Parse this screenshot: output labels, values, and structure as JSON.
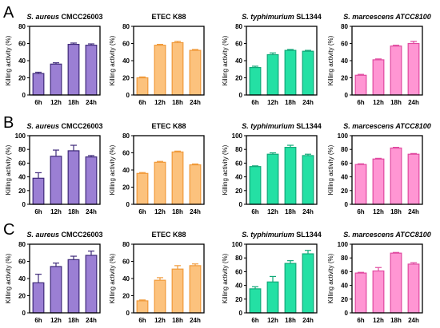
{
  "rows": [
    {
      "label": "A"
    },
    {
      "label": "B"
    },
    {
      "label": "C"
    }
  ],
  "chart_data": [
    {
      "type": "bar",
      "row": 0,
      "title_italic": "S. aureus",
      "title_rest": " CMCC26003",
      "ylabel": "Killing activity (%)",
      "categories": [
        "6h",
        "12h",
        "18h",
        "24h"
      ],
      "values": [
        25,
        36,
        59,
        58
      ],
      "errors": [
        1.5,
        1.5,
        1.5,
        1.5
      ],
      "ylim": [
        0,
        80
      ],
      "yticks": [
        0,
        20,
        40,
        60,
        80
      ],
      "color": "#9b7fd4",
      "edge": "#3f2a7a"
    },
    {
      "type": "bar",
      "row": 0,
      "title_italic": "",
      "title_rest": "ETEC K88",
      "ylabel": "Killing activity (%)",
      "categories": [
        "6h",
        "12h",
        "18h",
        "24h"
      ],
      "values": [
        20,
        58,
        61,
        52
      ],
      "errors": [
        1,
        1,
        1.5,
        1
      ],
      "ylim": [
        0,
        80
      ],
      "yticks": [
        0,
        20,
        40,
        60,
        80
      ],
      "color": "#fcc27d",
      "edge": "#f09a3a"
    },
    {
      "type": "bar",
      "row": 0,
      "title_italic": "S. typhimurium",
      "title_rest": " SL1344",
      "ylabel": "Killing activity (%)",
      "categories": [
        "6h",
        "12h",
        "18h",
        "24h"
      ],
      "values": [
        32,
        47,
        52,
        51
      ],
      "errors": [
        1.5,
        2,
        1,
        1
      ],
      "ylim": [
        0,
        80
      ],
      "yticks": [
        0,
        20,
        40,
        60,
        80
      ],
      "color": "#24e0a4",
      "edge": "#12a878"
    },
    {
      "type": "bar",
      "row": 0,
      "title_italic": "S. marcescens ATCC8100",
      "title_rest": "",
      "ylabel": "Killing activity (%)",
      "categories": [
        "6h",
        "12h",
        "18h",
        "24h"
      ],
      "values": [
        23,
        41,
        57,
        60
      ],
      "errors": [
        1,
        1,
        1,
        2.5
      ],
      "ylim": [
        0,
        80
      ],
      "yticks": [
        0,
        20,
        40,
        60,
        80
      ],
      "color": "#ff96d3",
      "edge": "#e04aa0"
    },
    {
      "type": "bar",
      "row": 1,
      "title_italic": "S. aureus",
      "title_rest": " CMCC26003",
      "ylabel": "Killing activity (%)",
      "categories": [
        "6h",
        "12h",
        "18h",
        "24h"
      ],
      "values": [
        38,
        70,
        78,
        69
      ],
      "errors": [
        8,
        9,
        8,
        2
      ],
      "ylim": [
        0,
        100
      ],
      "yticks": [
        0,
        20,
        40,
        60,
        80,
        100
      ],
      "color": "#9b7fd4",
      "edge": "#3f2a7a"
    },
    {
      "type": "bar",
      "row": 1,
      "title_italic": "",
      "title_rest": "ETEC K88",
      "ylabel": "Killing activity (%)",
      "categories": [
        "6h",
        "12h",
        "18h",
        "24h"
      ],
      "values": [
        36,
        49,
        61,
        46
      ],
      "errors": [
        1,
        1,
        1,
        1
      ],
      "ylim": [
        0,
        80
      ],
      "yticks": [
        0,
        20,
        40,
        60,
        80
      ],
      "color": "#fcc27d",
      "edge": "#f09a3a"
    },
    {
      "type": "bar",
      "row": 1,
      "title_italic": "S. typhimurium",
      "title_rest": " SL1344",
      "ylabel": "Killing activity (%)",
      "categories": [
        "6h",
        "12h",
        "18h",
        "24h"
      ],
      "values": [
        55,
        73,
        83,
        71
      ],
      "errors": [
        1,
        2,
        3,
        2
      ],
      "ylim": [
        0,
        100
      ],
      "yticks": [
        0,
        20,
        40,
        60,
        80,
        100
      ],
      "color": "#24e0a4",
      "edge": "#12a878"
    },
    {
      "type": "bar",
      "row": 1,
      "title_italic": "S. marcescens ATCC8100",
      "title_rest": "",
      "ylabel": "Killing activity (%)",
      "categories": [
        "6h",
        "12h",
        "18h",
        "24h"
      ],
      "values": [
        58,
        66,
        82,
        73
      ],
      "errors": [
        1,
        1,
        1,
        1
      ],
      "ylim": [
        0,
        100
      ],
      "yticks": [
        0,
        20,
        40,
        60,
        80,
        100
      ],
      "color": "#ff96d3",
      "edge": "#e04aa0"
    },
    {
      "type": "bar",
      "row": 2,
      "title_italic": "S. aureus",
      "title_rest": " CMCC26003",
      "ylabel": "Killing activity (%)",
      "categories": [
        "6h",
        "12h",
        "18h",
        "24h"
      ],
      "values": [
        35,
        54,
        62,
        67
      ],
      "errors": [
        10,
        4,
        4,
        5
      ],
      "ylim": [
        0,
        80
      ],
      "yticks": [
        0,
        20,
        40,
        60,
        80
      ],
      "color": "#9b7fd4",
      "edge": "#3f2a7a"
    },
    {
      "type": "bar",
      "row": 2,
      "title_italic": "",
      "title_rest": "ETEC K88",
      "ylabel": "Killing activity (%)",
      "categories": [
        "6h",
        "12h",
        "18h",
        "24h"
      ],
      "values": [
        14,
        38,
        51,
        55
      ],
      "errors": [
        1,
        3,
        4,
        2
      ],
      "ylim": [
        0,
        80
      ],
      "yticks": [
        0,
        20,
        40,
        60,
        80
      ],
      "color": "#fcc27d",
      "edge": "#f09a3a"
    },
    {
      "type": "bar",
      "row": 2,
      "title_italic": "S. typhimurium",
      "title_rest": " SL1344",
      "ylabel": "Killing activity (%)",
      "categories": [
        "6h",
        "12h",
        "18h",
        "24h"
      ],
      "values": [
        35,
        45,
        72,
        86
      ],
      "errors": [
        3,
        8,
        4,
        5
      ],
      "ylim": [
        0,
        100
      ],
      "yticks": [
        0,
        20,
        40,
        60,
        80,
        100
      ],
      "color": "#24e0a4",
      "edge": "#12a878"
    },
    {
      "type": "bar",
      "row": 2,
      "title_italic": "S. marcescens ATCC8100",
      "title_rest": "",
      "ylabel": "Killing activity (%)",
      "categories": [
        "6h",
        "12h",
        "18h",
        "24h"
      ],
      "values": [
        58,
        61,
        87,
        71
      ],
      "errors": [
        1,
        5,
        1,
        2
      ],
      "ylim": [
        0,
        100
      ],
      "yticks": [
        0,
        20,
        40,
        60,
        80,
        100
      ],
      "color": "#ff96d3",
      "edge": "#e04aa0"
    }
  ]
}
